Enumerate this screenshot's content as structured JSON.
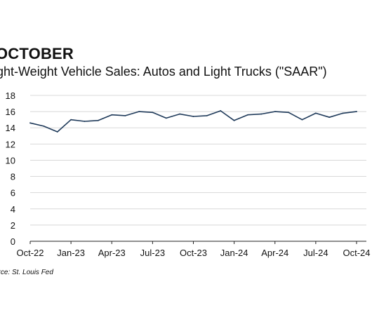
{
  "header": {
    "title": "OCTOBER",
    "subtitle": "ight-Weight Vehicle Sales: Autos and Light Trucks (\"SAAR\")",
    "source": "urce: St. Louis Fed"
  },
  "colors": {
    "line": "#1f3a5a",
    "grid": "#d8d8d8",
    "axis": "#222222"
  },
  "chart_data": {
    "type": "line",
    "title": "OCTOBER",
    "subtitle": "ight-Weight Vehicle Sales: Autos and Light Trucks (\"SAAR\")",
    "xlabel": "",
    "ylabel": "",
    "ylim": [
      0,
      18
    ],
    "yticks": [
      0,
      2,
      4,
      6,
      8,
      10,
      12,
      14,
      16,
      18
    ],
    "grid": true,
    "x": [
      "Oct-22",
      "Nov-22",
      "Dec-22",
      "Jan-23",
      "Feb-23",
      "Mar-23",
      "Apr-23",
      "May-23",
      "Jun-23",
      "Jul-23",
      "Aug-23",
      "Sep-23",
      "Oct-23",
      "Nov-23",
      "Dec-23",
      "Jan-24",
      "Feb-24",
      "Mar-24",
      "Apr-24",
      "May-24",
      "Jun-24",
      "Jul-24",
      "Aug-24",
      "Sep-24",
      "Oct-24"
    ],
    "xtick_labels": [
      "Oct-22",
      "Jan-23",
      "Apr-23",
      "Jul-23",
      "Oct-23",
      "Jan-24",
      "Apr-24",
      "Jul-24",
      "Oct-24"
    ],
    "series": [
      {
        "values": [
          14.6,
          14.2,
          13.5,
          15.0,
          14.8,
          14.9,
          15.6,
          15.5,
          16.0,
          15.9,
          15.2,
          15.7,
          15.4,
          15.5,
          16.1,
          14.9,
          15.6,
          15.7,
          16.0,
          15.9,
          15.0,
          15.8,
          15.3,
          15.8,
          16.0
        ]
      }
    ]
  }
}
